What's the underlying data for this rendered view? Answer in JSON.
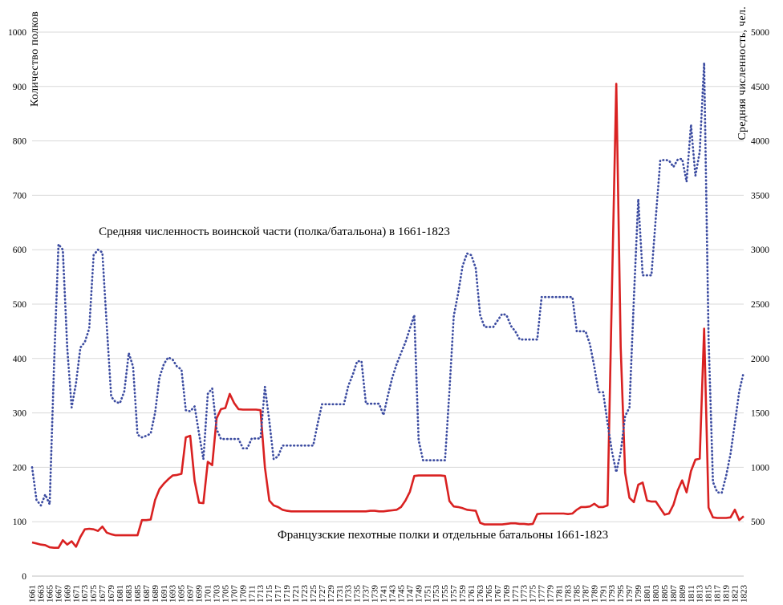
{
  "chart_data": {
    "type": "line",
    "title": "",
    "xlabel": "",
    "ylabel_left": "Количество полков",
    "ylabel_right": "Средняя численность, чел.",
    "x_range": [
      1661,
      1823
    ],
    "x_tick_step": 2,
    "x_ticks": [
      1661,
      1663,
      1665,
      1667,
      1669,
      1671,
      1673,
      1675,
      1677,
      1679,
      1681,
      1683,
      1685,
      1687,
      1689,
      1691,
      1693,
      1695,
      1697,
      1699,
      1701,
      1703,
      1705,
      1707,
      1709,
      1711,
      1713,
      1715,
      1717,
      1719,
      1721,
      1723,
      1725,
      1727,
      1729,
      1731,
      1733,
      1735,
      1737,
      1739,
      1741,
      1743,
      1745,
      1747,
      1749,
      1751,
      1753,
      1755,
      1757,
      1759,
      1761,
      1763,
      1765,
      1767,
      1769,
      1771,
      1773,
      1775,
      1777,
      1779,
      1781,
      1783,
      1785,
      1787,
      1789,
      1791,
      1793,
      1795,
      1797,
      1799,
      1801,
      1803,
      1805,
      1807,
      1809,
      1811,
      1813,
      1815,
      1817,
      1819,
      1821,
      1823
    ],
    "left_axis": {
      "min": 0,
      "max": 1000,
      "ticks": [
        0,
        100,
        200,
        300,
        400,
        500,
        600,
        700,
        800,
        900,
        1000
      ]
    },
    "right_axis": {
      "min": 0,
      "max": 5000,
      "ticks": [
        500,
        1000,
        1500,
        2000,
        2500,
        3000,
        3500,
        4000,
        4500,
        5000
      ]
    },
    "grid": "horizontal-only",
    "legend_position": "none",
    "annotations": [
      {
        "text": "Средняя численность воинской части (полка/батальона) в 1661-1823"
      },
      {
        "text": "Французские пехотные полки и отдельные батальоны 1661-1823"
      }
    ],
    "colors": {
      "red_series": "#d92121",
      "blue_series": "#3b4ba0",
      "grid": "#d9d9d9",
      "axis": "#bfbfbf",
      "text": "#000000"
    },
    "series": [
      {
        "id": "regiments",
        "name": "Французские пехотные полки и отдельные батальоны 1661-1823",
        "axis": "left",
        "style": "solid",
        "width": 2.6,
        "values": [
          62,
          60,
          58,
          57,
          53,
          52,
          52,
          66,
          58,
          64,
          54,
          72,
          86,
          87,
          86,
          83,
          91,
          80,
          77,
          75,
          75,
          75,
          75,
          75,
          75,
          103,
          103,
          104,
          140,
          160,
          170,
          178,
          185,
          186,
          188,
          255,
          258,
          175,
          135,
          134,
          210,
          204,
          290,
          307,
          309,
          335,
          318,
          307,
          306,
          306,
          306,
          306,
          305,
          200,
          139,
          130,
          127,
          122,
          120,
          119,
          119,
          119,
          119,
          119,
          119,
          119,
          119,
          119,
          119,
          119,
          119,
          119,
          119,
          119,
          119,
          119,
          119,
          120,
          120,
          119,
          119,
          120,
          121,
          122,
          127,
          139,
          155,
          184,
          185,
          185,
          185,
          185,
          185,
          185,
          184,
          138,
          128,
          127,
          125,
          122,
          121,
          120,
          98,
          95,
          95,
          95,
          95,
          95,
          96,
          97,
          97,
          96,
          96,
          95,
          96,
          114,
          115,
          115,
          115,
          115,
          115,
          115,
          114,
          115,
          122,
          127,
          127,
          128,
          133,
          127,
          127,
          130,
          520,
          905,
          420,
          190,
          144,
          136,
          168,
          172,
          139,
          137,
          137,
          125,
          113,
          115,
          131,
          158,
          176,
          154,
          193,
          214,
          216,
          455,
          126,
          108,
          107,
          107,
          107,
          108,
          122,
          103,
          110
        ]
      },
      {
        "id": "avg-strength",
        "name": "Средняя численность воинской части (полка/батальона) в 1661-1823",
        "axis": "right",
        "style": "dotted",
        "width": 2.7,
        "values": [
          1000,
          700,
          650,
          750,
          660,
          1950,
          3050,
          3000,
          2100,
          1550,
          1775,
          2100,
          2150,
          2275,
          2950,
          3000,
          2975,
          2300,
          1650,
          1600,
          1590,
          1700,
          2050,
          1925,
          1300,
          1275,
          1290,
          1310,
          1500,
          1825,
          1950,
          2010,
          1990,
          1925,
          1900,
          1525,
          1515,
          1560,
          1310,
          1075,
          1675,
          1725,
          1350,
          1260,
          1260,
          1260,
          1260,
          1260,
          1175,
          1175,
          1265,
          1265,
          1265,
          1740,
          1425,
          1075,
          1100,
          1200,
          1200,
          1200,
          1200,
          1200,
          1200,
          1200,
          1200,
          1400,
          1580,
          1580,
          1580,
          1580,
          1580,
          1580,
          1750,
          1850,
          1975,
          1975,
          1585,
          1585,
          1585,
          1585,
          1480,
          1660,
          1825,
          1950,
          2050,
          2150,
          2275,
          2400,
          1250,
          1065,
          1065,
          1065,
          1065,
          1065,
          1065,
          1700,
          2390,
          2600,
          2850,
          2965,
          2950,
          2830,
          2400,
          2290,
          2290,
          2290,
          2350,
          2410,
          2400,
          2300,
          2250,
          2175,
          2175,
          2175,
          2175,
          2175,
          2565,
          2565,
          2565,
          2565,
          2565,
          2565,
          2565,
          2565,
          2250,
          2250,
          2250,
          2130,
          1925,
          1690,
          1690,
          1405,
          1150,
          955,
          1140,
          1470,
          1550,
          2550,
          3465,
          2765,
          2765,
          2765,
          3300,
          3820,
          3825,
          3820,
          3760,
          3830,
          3835,
          3625,
          4150,
          3680,
          3900,
          4720,
          2200,
          865,
          770,
          765,
          920,
          1125,
          1405,
          1700,
          1875
        ]
      }
    ]
  }
}
